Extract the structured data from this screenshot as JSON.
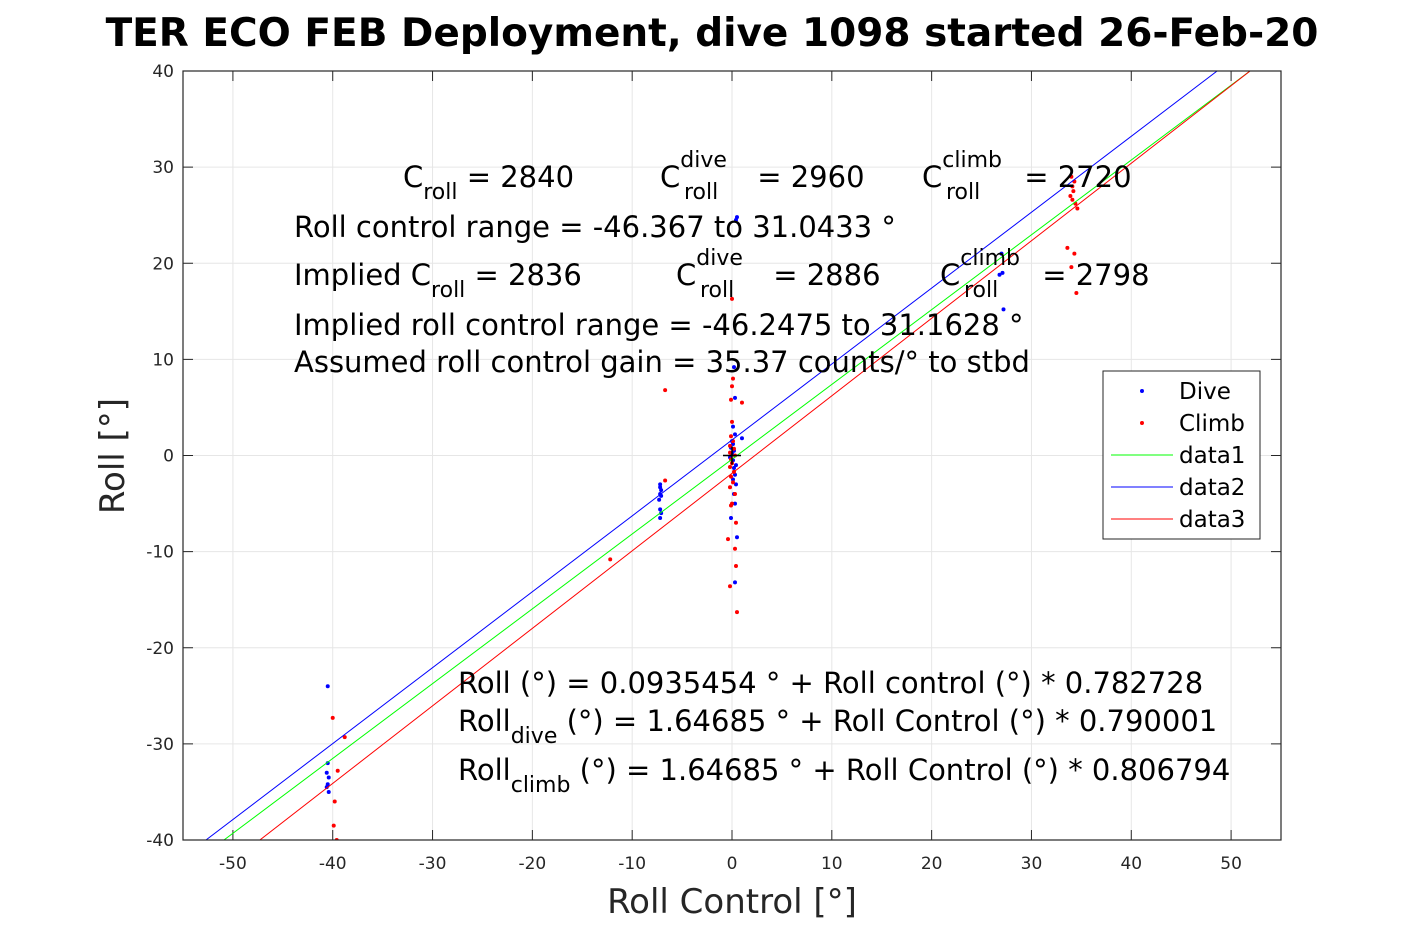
{
  "chart_data": {
    "type": "scatter",
    "title": "TER ECO FEB Deployment, dive 1098 started 26-Feb-20",
    "xlabel": "Roll Control [°]",
    "ylabel": "Roll [°]",
    "xlim": [
      -55,
      55
    ],
    "ylim": [
      -40,
      40
    ],
    "xticks": [
      -50,
      -40,
      -30,
      -20,
      -10,
      0,
      10,
      20,
      30,
      40,
      50
    ],
    "yticks": [
      -40,
      -30,
      -20,
      -10,
      0,
      10,
      20,
      30,
      40
    ],
    "grid": true,
    "legend_position": "right",
    "series": [
      {
        "name": "Dive",
        "kind": "points",
        "color": "#0000ff",
        "points": [
          [
            -40.5,
            -24
          ],
          [
            -40.5,
            -32
          ],
          [
            -40.6,
            -33
          ],
          [
            -40.4,
            -33.5
          ],
          [
            -40.5,
            -34.2
          ],
          [
            -40.6,
            -34.5
          ],
          [
            -40.4,
            -35
          ],
          [
            -7.2,
            -3
          ],
          [
            -7.2,
            -3.3
          ],
          [
            -7.1,
            -3.6
          ],
          [
            -7.2,
            -4
          ],
          [
            -7.1,
            -4.2
          ],
          [
            -7.3,
            -4.6
          ],
          [
            -7.2,
            -5.6
          ],
          [
            -7.1,
            -6
          ],
          [
            -7.2,
            -6.5
          ],
          [
            0.4,
            24.5
          ],
          [
            0.5,
            24.8
          ],
          [
            0.2,
            9.2
          ],
          [
            0.3,
            6
          ],
          [
            0.1,
            3
          ],
          [
            1.0,
            1.8
          ],
          [
            0.3,
            2.2
          ],
          [
            0,
            1.5
          ],
          [
            0.1,
            1.2
          ],
          [
            -0.1,
            0.8
          ],
          [
            0.2,
            0.5
          ],
          [
            0,
            0.2
          ],
          [
            -0.2,
            -0.2
          ],
          [
            0.1,
            -0.5
          ],
          [
            0.4,
            -1
          ],
          [
            0.2,
            -1.3
          ],
          [
            0.3,
            -2
          ],
          [
            0.1,
            -2.5
          ],
          [
            0.4,
            -3
          ],
          [
            0.2,
            -4
          ],
          [
            0.3,
            -5
          ],
          [
            -0.1,
            -6.5
          ],
          [
            0.5,
            -8.5
          ],
          [
            0.3,
            -13.2
          ],
          [
            27,
            21
          ],
          [
            27.1,
            19
          ],
          [
            26.8,
            18.8
          ],
          [
            27.2,
            15.2
          ]
        ]
      },
      {
        "name": "Climb",
        "kind": "points",
        "color": "#ff0000",
        "points": [
          [
            -40,
            -27.3
          ],
          [
            -38.8,
            -29.3
          ],
          [
            -39.5,
            -32.8
          ],
          [
            -39.8,
            -36
          ],
          [
            -39.9,
            -38.5
          ],
          [
            -39.6,
            -40
          ],
          [
            -12.2,
            -10.8
          ],
          [
            -6.7,
            6.8
          ],
          [
            -6.7,
            -2.6
          ],
          [
            0,
            16.3
          ],
          [
            0.1,
            8
          ],
          [
            0,
            7.2
          ],
          [
            -0.1,
            5.8
          ],
          [
            1.0,
            5.5
          ],
          [
            0,
            3.5
          ],
          [
            -0.1,
            2
          ],
          [
            0.1,
            1.5
          ],
          [
            -0.2,
            1
          ],
          [
            0.2,
            0.7
          ],
          [
            -0.2,
            0.3
          ],
          [
            0.3,
            0
          ],
          [
            -0.1,
            -0.4
          ],
          [
            0,
            -0.8
          ],
          [
            -0.2,
            -1.2
          ],
          [
            0.2,
            -1.7
          ],
          [
            -0.1,
            -2.2
          ],
          [
            0.1,
            -2.8
          ],
          [
            -0.2,
            -3.3
          ],
          [
            0.3,
            -4
          ],
          [
            0,
            -5
          ],
          [
            -0.1,
            -5.2
          ],
          [
            0.4,
            -7
          ],
          [
            -0.4,
            -8.7
          ],
          [
            0.3,
            -9.7
          ],
          [
            0.4,
            -11.5
          ],
          [
            -0.2,
            -13.6
          ],
          [
            0.5,
            -16.3
          ],
          [
            34,
            29
          ],
          [
            34.3,
            28.5
          ],
          [
            34.1,
            28
          ],
          [
            34.2,
            27.5
          ],
          [
            33.9,
            27
          ],
          [
            34.1,
            26.6
          ],
          [
            34.4,
            26.2
          ],
          [
            34.6,
            25.7
          ],
          [
            33.6,
            21.6
          ],
          [
            34.3,
            21
          ],
          [
            34,
            19.6
          ],
          [
            34.5,
            16.9
          ]
        ]
      },
      {
        "name": "data1",
        "kind": "line",
        "color": "#00ff00",
        "x": [
          -50.9,
          51.9
        ],
        "y": [
          -40,
          40
        ]
      },
      {
        "name": "data2",
        "kind": "line",
        "color": "#0000ff",
        "x": [
          -52.7,
          48.6
        ],
        "y": [
          -40,
          40
        ]
      },
      {
        "name": "data3",
        "kind": "line",
        "color": "#ff0000",
        "x": [
          -47.3,
          51.9
        ],
        "y": [
          -40,
          40
        ]
      }
    ],
    "origin_marker": {
      "x": 0,
      "y": 0,
      "color": "#000000"
    }
  },
  "annotations": {
    "c_roll": "C",
    "c_roll_sub": "roll",
    "c_roll_val": " = 2840",
    "c_dive": "C",
    "c_dive_sup": "dive",
    "c_dive_sub": "roll",
    "c_dive_val": " = 2960",
    "c_climb": "C",
    "c_climb_sup": "climb",
    "c_climb_sub": "roll",
    "c_climb_val": " = 2720",
    "range_line": "Roll control range = -46.367 to 31.0433 °",
    "implied_prefix": "Implied C",
    "implied_sub": "roll",
    "implied_val": " = 2836",
    "implied_dive": "C",
    "implied_dive_sup": "dive",
    "implied_dive_sub": "roll",
    "implied_dive_val": " = 2886",
    "implied_climb": "C",
    "implied_climb_sup": "climb",
    "implied_climb_sub": "roll",
    "implied_climb_val": " = 2798",
    "implied_range_line": "Implied roll control range = -46.2475 to 31.1628 °",
    "gain_line": "Assumed roll control gain = 35.37 counts/° to stbd",
    "fit_line": "Roll (°) = 0.0935454 ° + Roll control (°) * 0.782728",
    "fit_dive_prefix": "Roll",
    "fit_dive_sub": "dive",
    "fit_dive_rest": " (°) = 1.64685 ° + Roll Control (°) * 0.790001",
    "fit_climb_prefix": "Roll",
    "fit_climb_sub": "climb",
    "fit_climb_rest": " (°) = 1.64685 ° + Roll Control (°) * 0.806794"
  }
}
